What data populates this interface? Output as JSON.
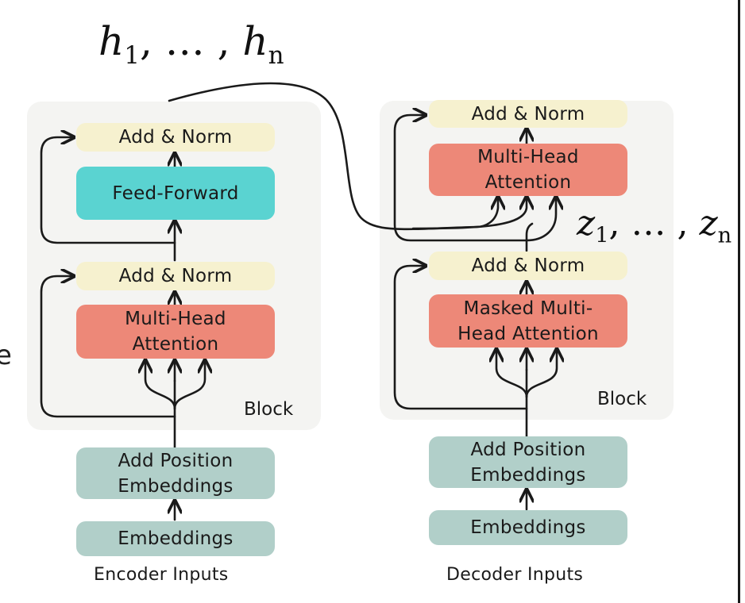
{
  "encoder": {
    "add_norm_top": "Add & Norm",
    "feed_forward": "Feed-Forward",
    "add_norm_bottom": "Add & Norm",
    "multi_head_attention": "Multi-Head\nAttention",
    "block_label": "Block",
    "add_position_embeddings": "Add Position\nEmbeddings",
    "embeddings": "Embeddings",
    "inputs_label": "Encoder Inputs"
  },
  "decoder": {
    "add_norm_top": "Add & Norm",
    "multi_head_attention": "Multi-Head\nAttention",
    "add_norm_bottom": "Add & Norm",
    "masked_attention": "Masked Multi-\nHead Attention",
    "block_label": "Block",
    "add_position_embeddings": "Add Position\nEmbeddings",
    "embeddings": "Embeddings",
    "inputs_label": "Decoder Inputs"
  },
  "math": {
    "h_first_base": "h",
    "h_first_sub": "1",
    "h_sep": ", … , ",
    "h_last_base": "h",
    "h_last_sub": "n",
    "z_first_base": "z",
    "z_first_sub": "1",
    "z_sep": ", … , ",
    "z_last_base": "z",
    "z_last_sub": "n"
  },
  "partial_left_glyph": "e",
  "colors": {
    "norm": "#f6f1cf",
    "feed_forward": "#5ad3d1",
    "attention": "#ed8878",
    "embedding": "#b1cfc9",
    "block_background": "#f4f4f2"
  }
}
